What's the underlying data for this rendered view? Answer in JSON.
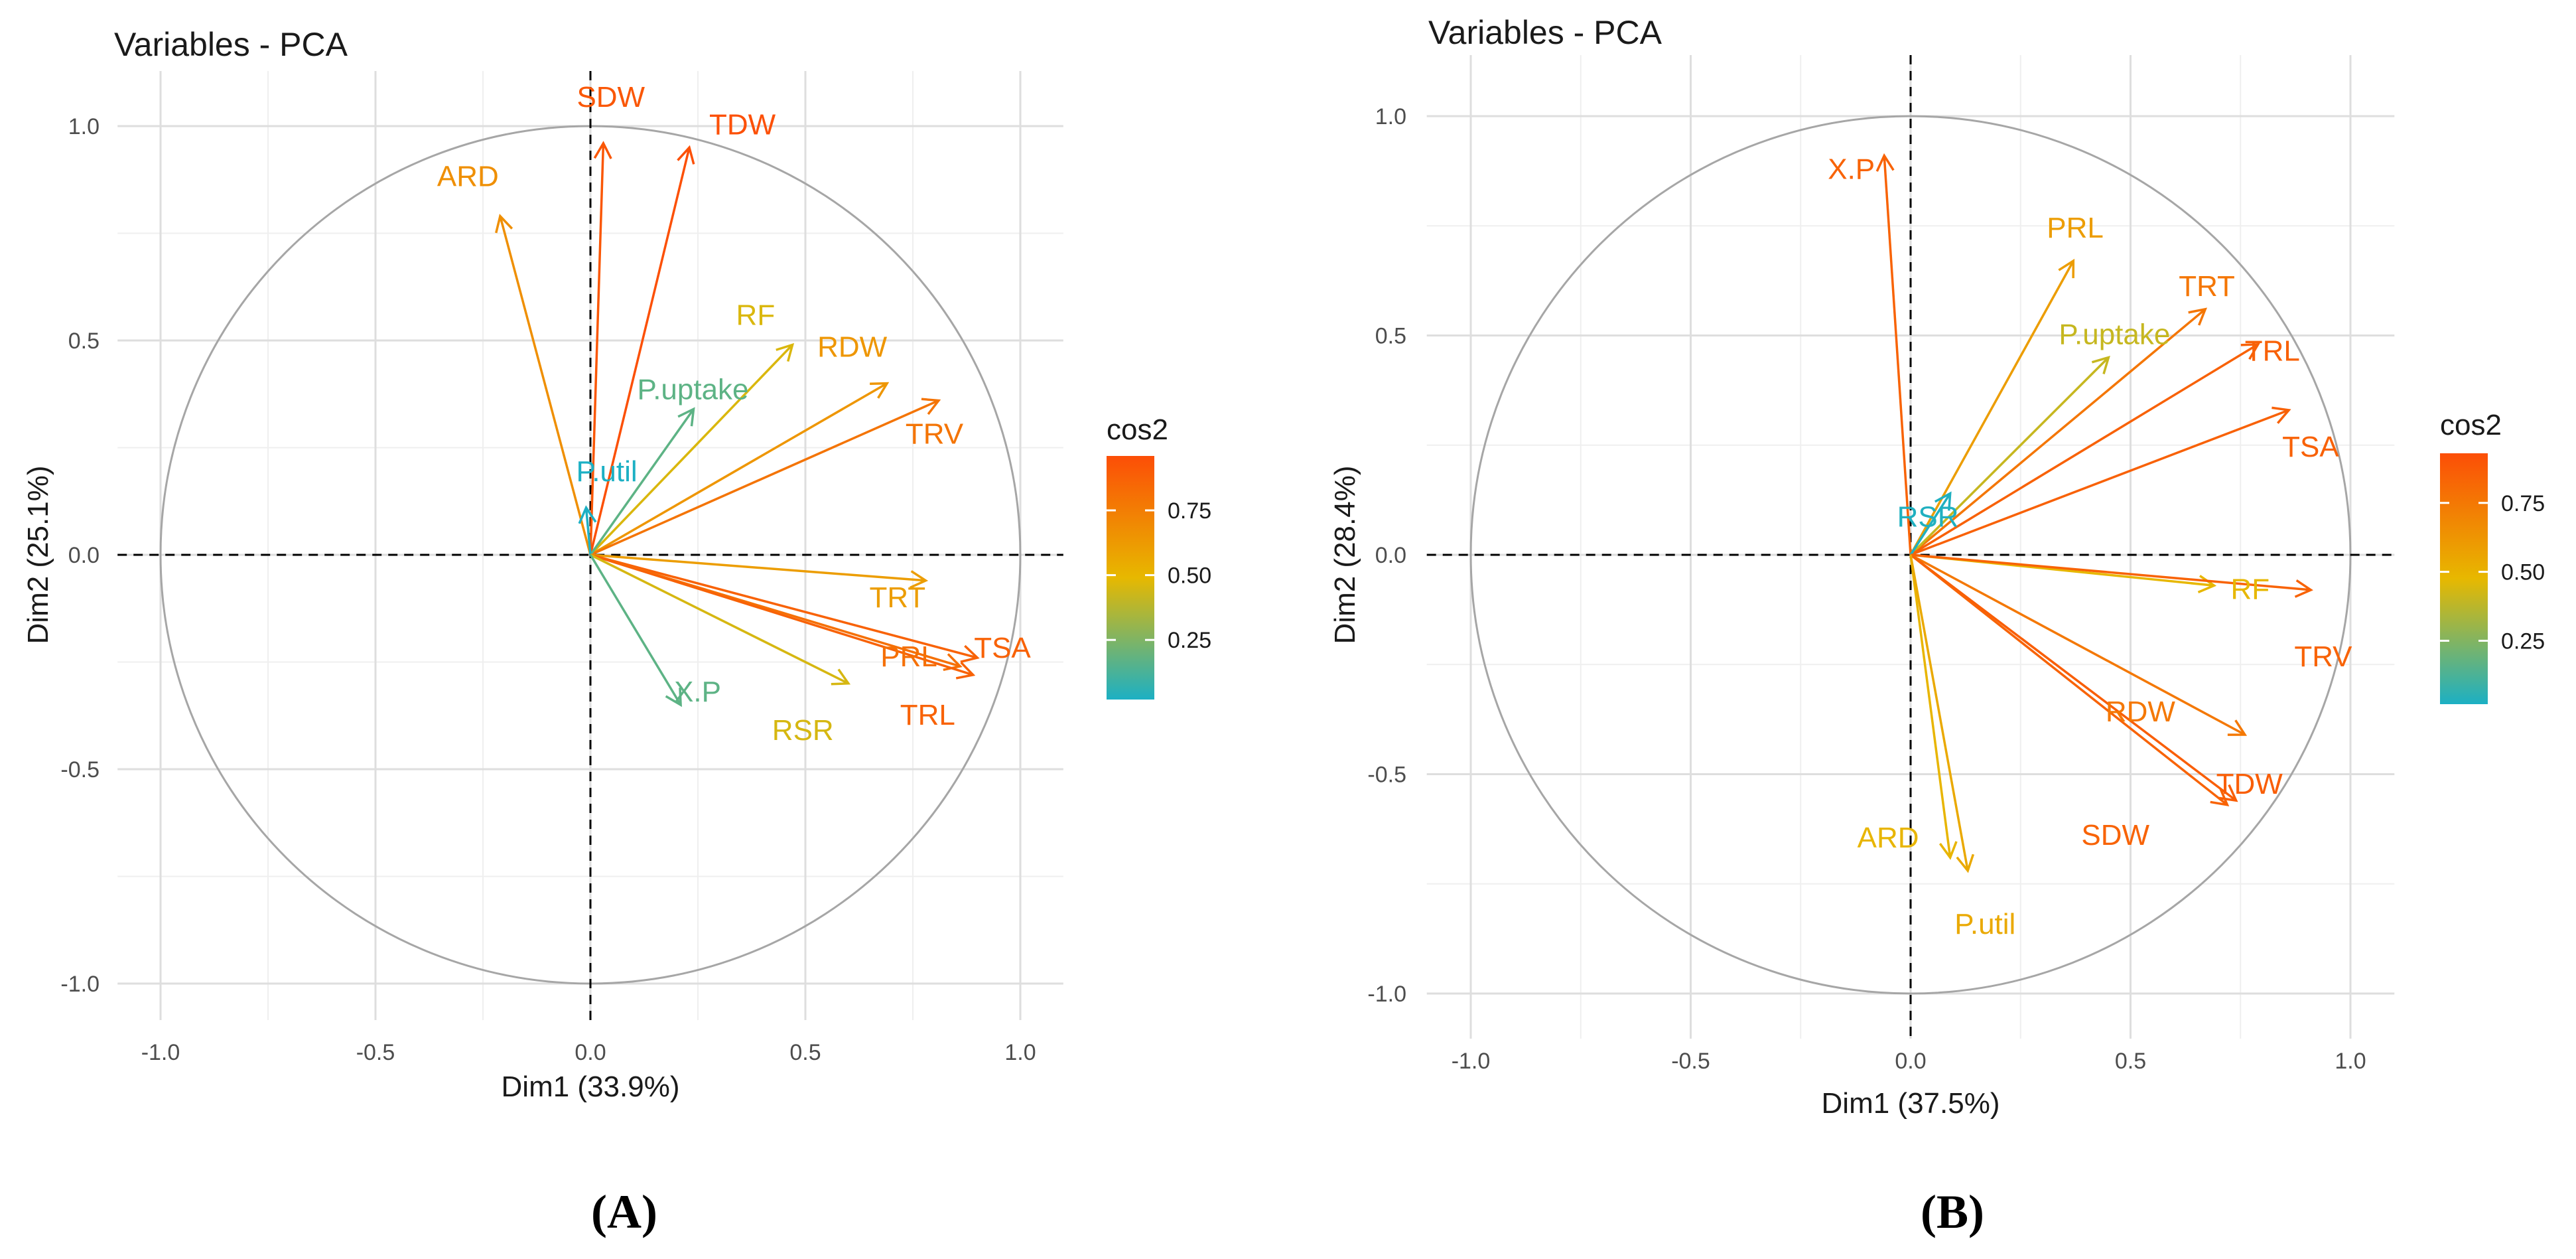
{
  "colors": {
    "low": "#1CB0C4",
    "mid": "#E7B800",
    "high": "#FC4E07",
    "grid_major": "#dedede",
    "grid_minor": "#efefef",
    "circle": "#a6a6a6"
  },
  "chart_data": [
    {
      "type": "pca-variable-correlation-circle",
      "panel_label": "(A)",
      "title": "Variables - PCA",
      "xlabel": "Dim1 (33.9%)",
      "ylabel": "Dim2 (25.1%)",
      "xlim": [
        -1.1,
        1.1
      ],
      "ylim": [
        -1.1,
        1.1
      ],
      "x_ticks": [
        "-1.0",
        "-0.5",
        "0.0",
        "0.5",
        "1.0"
      ],
      "y_ticks": [
        "-1.0",
        "-0.5",
        "0.0",
        "0.5",
        "1.0"
      ],
      "legend": {
        "title": "cos2",
        "ticks": [
          "0.25",
          "0.50",
          "0.75"
        ],
        "range": [
          0.02,
          0.96
        ]
      },
      "variables": [
        {
          "name": "SDW",
          "x": 0.03,
          "y": 0.96,
          "cos2": 0.92
        },
        {
          "name": "TDW",
          "x": 0.23,
          "y": 0.95,
          "cos2": 0.95
        },
        {
          "name": "ARD",
          "x": -0.21,
          "y": 0.79,
          "cos2": 0.67
        },
        {
          "name": "RF",
          "x": 0.47,
          "y": 0.49,
          "cos2": 0.46
        },
        {
          "name": "RDW",
          "x": 0.69,
          "y": 0.4,
          "cos2": 0.64
        },
        {
          "name": "TRV",
          "x": 0.81,
          "y": 0.36,
          "cos2": 0.79
        },
        {
          "name": "P.uptake",
          "x": 0.24,
          "y": 0.34,
          "cos2": 0.17
        },
        {
          "name": "P.util",
          "x": -0.01,
          "y": 0.11,
          "cos2": 0.02
        },
        {
          "name": "TRT",
          "x": 0.78,
          "y": -0.06,
          "cos2": 0.61
        },
        {
          "name": "TSA",
          "x": 0.9,
          "y": -0.24,
          "cos2": 0.87
        },
        {
          "name": "PRL",
          "x": 0.86,
          "y": -0.26,
          "cos2": 0.81
        },
        {
          "name": "TRL",
          "x": 0.89,
          "y": -0.28,
          "cos2": 0.87
        },
        {
          "name": "RSR",
          "x": 0.6,
          "y": -0.3,
          "cos2": 0.45
        },
        {
          "name": "X.P",
          "x": 0.21,
          "y": -0.35,
          "cos2": 0.17
        }
      ]
    },
    {
      "type": "pca-variable-correlation-circle",
      "panel_label": "(B)",
      "title": "Variables - PCA",
      "xlabel": "Dim1 (37.5%)",
      "ylabel": "Dim2 (28.4%)",
      "xlim": [
        -1.1,
        1.1
      ],
      "ylim": [
        -1.1,
        1.1
      ],
      "x_ticks": [
        "-1.0",
        "-0.5",
        "0.0",
        "0.5",
        "1.0"
      ],
      "y_ticks": [
        "-1.0",
        "-0.5",
        "0.0",
        "0.5",
        "1.0"
      ],
      "legend": {
        "title": "cos2",
        "ticks": [
          "0.25",
          "0.50",
          "0.75"
        ],
        "range": [
          0.02,
          0.93
        ]
      },
      "variables": [
        {
          "name": "X.P",
          "x": -0.06,
          "y": 0.91,
          "cos2": 0.84
        },
        {
          "name": "PRL",
          "x": 0.37,
          "y": 0.67,
          "cos2": 0.59
        },
        {
          "name": "TRT",
          "x": 0.67,
          "y": 0.56,
          "cos2": 0.76
        },
        {
          "name": "P.uptake",
          "x": 0.45,
          "y": 0.45,
          "cos2": 0.4
        },
        {
          "name": "TRL",
          "x": 0.79,
          "y": 0.48,
          "cos2": 0.85
        },
        {
          "name": "TSA",
          "x": 0.86,
          "y": 0.33,
          "cos2": 0.85
        },
        {
          "name": "RSR",
          "x": 0.09,
          "y": 0.14,
          "cos2": 0.03
        },
        {
          "name": "RF",
          "x": 0.69,
          "y": -0.07,
          "cos2": 0.48
        },
        {
          "name": "TRV",
          "x": 0.91,
          "y": -0.08,
          "cos2": 0.84
        },
        {
          "name": "RDW",
          "x": 0.76,
          "y": -0.41,
          "cos2": 0.75
        },
        {
          "name": "TDW",
          "x": 0.74,
          "y": -0.56,
          "cos2": 0.86
        },
        {
          "name": "SDW",
          "x": 0.72,
          "y": -0.57,
          "cos2": 0.84
        },
        {
          "name": "ARD",
          "x": 0.09,
          "y": -0.69,
          "cos2": 0.49
        },
        {
          "name": "P.util",
          "x": 0.13,
          "y": -0.72,
          "cos2": 0.54
        }
      ]
    }
  ]
}
